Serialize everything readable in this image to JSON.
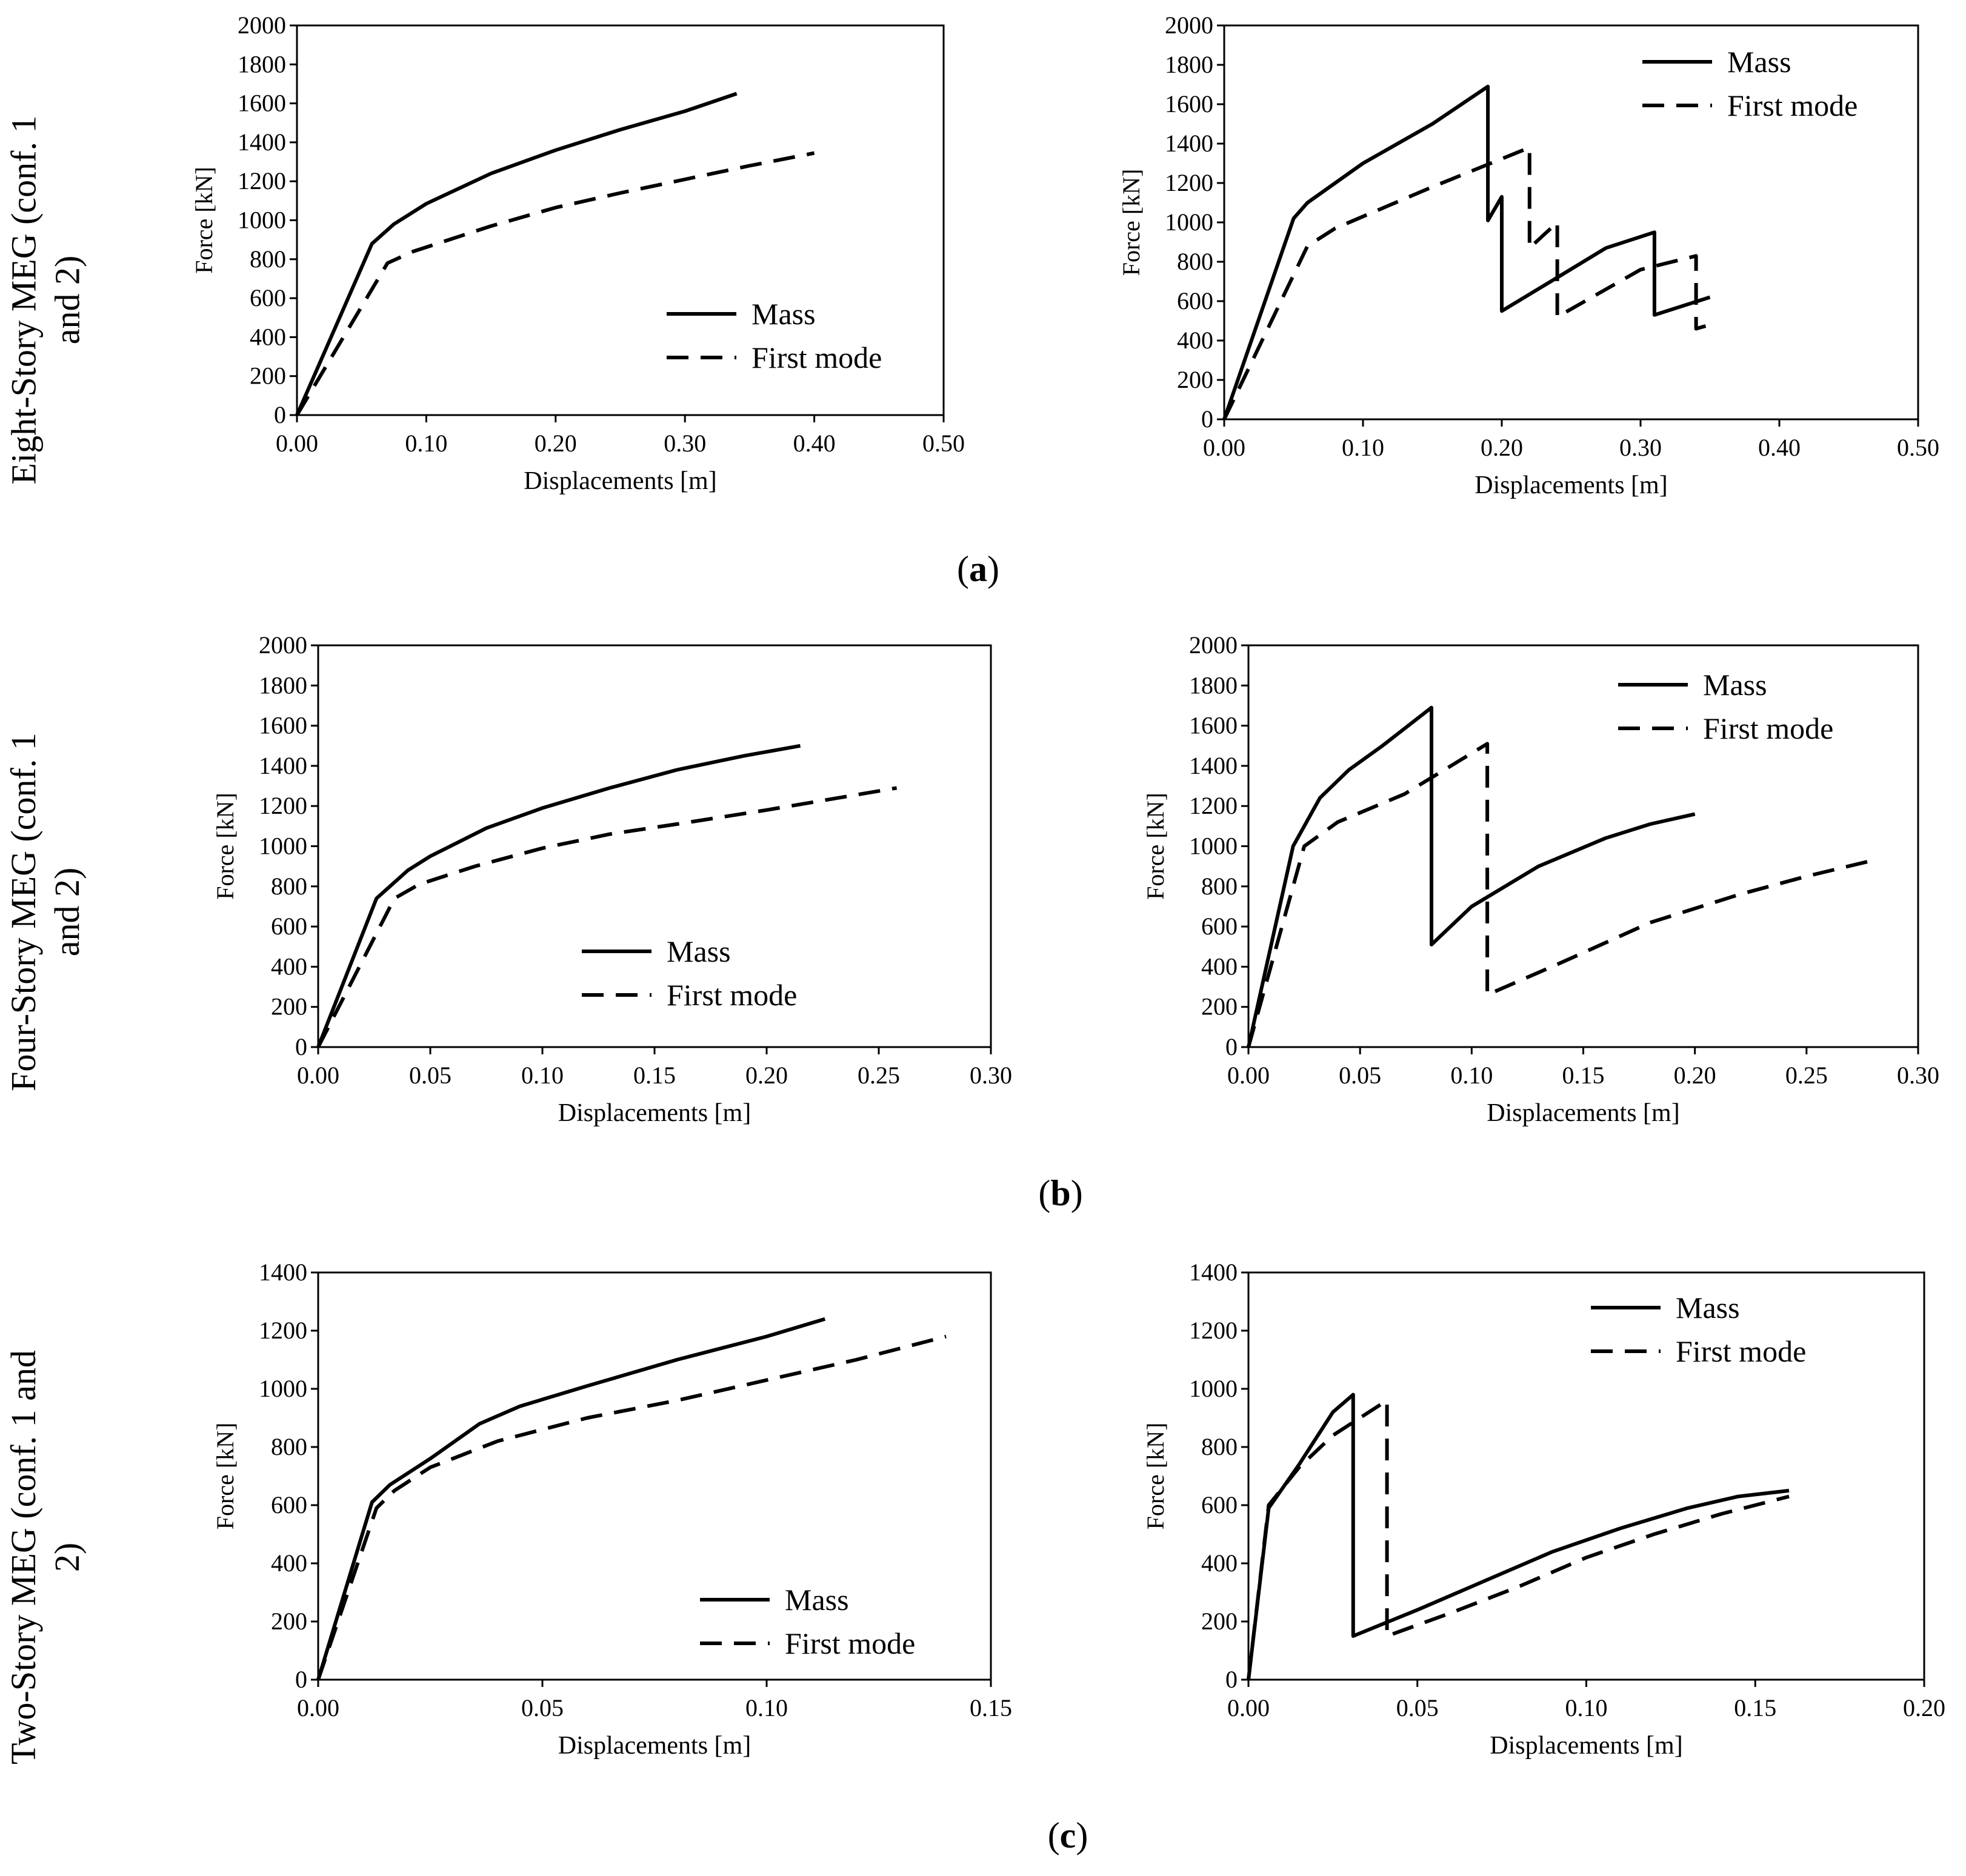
{
  "row_labels": [
    {
      "line1": "Eight-Story MEG (conf. 1",
      "line2": "and 2)"
    },
    {
      "line1": "Four-Story MEG (conf. 1",
      "line2": "and 2)"
    },
    {
      "line1": "Two-Story MEG (conf. 1 and",
      "line2": "2)"
    }
  ],
  "panel_labels": [
    {
      "open": "(",
      "letter": "a",
      "close": ")"
    },
    {
      "open": "(",
      "letter": "b",
      "close": ")"
    },
    {
      "open": "(",
      "letter": "c",
      "close": ")"
    }
  ],
  "chart_data": [
    {
      "id": "a-left",
      "type": "line",
      "title": "",
      "xlabel": "Displacements [m]",
      "ylabel": "Force [kN]",
      "xlim": [
        0,
        0.5
      ],
      "ylim": [
        0,
        2000
      ],
      "xticks": [
        0,
        0.1,
        0.2,
        0.3,
        0.4,
        0.5
      ],
      "xtick_labels": [
        "0.00",
        "0.10",
        "0.20",
        "0.30",
        "0.40",
        "0.50"
      ],
      "yticks": [
        0,
        200,
        400,
        600,
        800,
        1000,
        1200,
        1400,
        1600,
        1800,
        2000
      ],
      "ytick_labels": [
        "0",
        "200",
        "400",
        "600",
        "800",
        "1000",
        "1200",
        "1400",
        "1600",
        "1800",
        "2000"
      ],
      "legend_position": "bottom-right",
      "series": [
        {
          "name": "Mass",
          "style": "solid",
          "points": [
            [
              0,
              0
            ],
            [
              0.058,
              880
            ],
            [
              0.075,
              980
            ],
            [
              0.1,
              1085
            ],
            [
              0.15,
              1240
            ],
            [
              0.2,
              1360
            ],
            [
              0.25,
              1465
            ],
            [
              0.3,
              1560
            ],
            [
              0.34,
              1650
            ]
          ]
        },
        {
          "name": "First mode",
          "style": "dashed",
          "points": [
            [
              0,
              0
            ],
            [
              0.07,
              780
            ],
            [
              0.09,
              840
            ],
            [
              0.15,
              970
            ],
            [
              0.2,
              1065
            ],
            [
              0.25,
              1140
            ],
            [
              0.3,
              1210
            ],
            [
              0.35,
              1280
            ],
            [
              0.4,
              1345
            ]
          ]
        }
      ]
    },
    {
      "id": "a-right",
      "type": "line",
      "title": "",
      "xlabel": "Displacements [m]",
      "ylabel": "Force [kN]",
      "xlim": [
        0,
        0.5
      ],
      "ylim": [
        0,
        2000
      ],
      "xticks": [
        0,
        0.1,
        0.2,
        0.3,
        0.4,
        0.5
      ],
      "xtick_labels": [
        "0.00",
        "0.10",
        "0.20",
        "0.30",
        "0.40",
        "0.50"
      ],
      "yticks": [
        0,
        200,
        400,
        600,
        800,
        1000,
        1200,
        1400,
        1600,
        1800,
        2000
      ],
      "ytick_labels": [
        "0",
        "200",
        "400",
        "600",
        "800",
        "1000",
        "1200",
        "1400",
        "1600",
        "1800",
        "2000"
      ],
      "legend_position": "top-right",
      "series": [
        {
          "name": "Mass",
          "style": "solid",
          "points": [
            [
              0,
              0
            ],
            [
              0.05,
              1020
            ],
            [
              0.06,
              1100
            ],
            [
              0.1,
              1300
            ],
            [
              0.15,
              1500
            ],
            [
              0.19,
              1690
            ],
            [
              0.19,
              1010
            ],
            [
              0.2,
              1130
            ],
            [
              0.2,
              550
            ],
            [
              0.24,
              720
            ],
            [
              0.275,
              870
            ],
            [
              0.31,
              950
            ],
            [
              0.31,
              530
            ],
            [
              0.35,
              620
            ]
          ]
        },
        {
          "name": "First mode",
          "style": "dashed",
          "points": [
            [
              0,
              0
            ],
            [
              0.06,
              880
            ],
            [
              0.08,
              970
            ],
            [
              0.15,
              1180
            ],
            [
              0.22,
              1380
            ],
            [
              0.22,
              870
            ],
            [
              0.24,
              1000
            ],
            [
              0.24,
              520
            ],
            [
              0.3,
              760
            ],
            [
              0.34,
              830
            ],
            [
              0.34,
              460
            ],
            [
              0.35,
              480
            ]
          ]
        }
      ]
    },
    {
      "id": "b-left",
      "type": "line",
      "title": "",
      "xlabel": "Displacements [m]",
      "ylabel": "Force [kN]",
      "xlim": [
        0,
        0.3
      ],
      "ylim": [
        0,
        2000
      ],
      "xticks": [
        0,
        0.05,
        0.1,
        0.15,
        0.2,
        0.25,
        0.3
      ],
      "xtick_labels": [
        "0.00",
        "0.05",
        "0.10",
        "0.15",
        "0.20",
        "0.25",
        "0.30"
      ],
      "yticks": [
        0,
        200,
        400,
        600,
        800,
        1000,
        1200,
        1400,
        1600,
        1800,
        2000
      ],
      "ytick_labels": [
        "0",
        "200",
        "400",
        "600",
        "800",
        "1000",
        "1200",
        "1400",
        "1600",
        "1800",
        "2000"
      ],
      "legend_position": "bottom-center",
      "series": [
        {
          "name": "Mass",
          "style": "solid",
          "points": [
            [
              0,
              0
            ],
            [
              0.026,
              740
            ],
            [
              0.04,
              880
            ],
            [
              0.05,
              950
            ],
            [
              0.075,
              1090
            ],
            [
              0.1,
              1190
            ],
            [
              0.13,
              1290
            ],
            [
              0.16,
              1380
            ],
            [
              0.19,
              1450
            ],
            [
              0.215,
              1500
            ]
          ]
        },
        {
          "name": "First mode",
          "style": "dashed",
          "points": [
            [
              0,
              0
            ],
            [
              0.034,
              740
            ],
            [
              0.045,
              810
            ],
            [
              0.07,
              900
            ],
            [
              0.1,
              990
            ],
            [
              0.13,
              1060
            ],
            [
              0.16,
              1110
            ],
            [
              0.2,
              1180
            ],
            [
              0.258,
              1290
            ]
          ]
        }
      ]
    },
    {
      "id": "b-right",
      "type": "line",
      "title": "",
      "xlabel": "Displacements [m]",
      "ylabel": "Force [kN]",
      "xlim": [
        0,
        0.3
      ],
      "ylim": [
        0,
        2000
      ],
      "xticks": [
        0,
        0.05,
        0.1,
        0.15,
        0.2,
        0.25,
        0.3
      ],
      "xtick_labels": [
        "0.00",
        "0.05",
        "0.10",
        "0.15",
        "0.20",
        "0.25",
        "0.30"
      ],
      "yticks": [
        0,
        200,
        400,
        600,
        800,
        1000,
        1200,
        1400,
        1600,
        1800,
        2000
      ],
      "ytick_labels": [
        "0",
        "200",
        "400",
        "600",
        "800",
        "1000",
        "1200",
        "1400",
        "1600",
        "1800",
        "2000"
      ],
      "legend_position": "top-right",
      "series": [
        {
          "name": "Mass",
          "style": "solid",
          "points": [
            [
              0,
              0
            ],
            [
              0.02,
              1000
            ],
            [
              0.032,
              1240
            ],
            [
              0.045,
              1380
            ],
            [
              0.06,
              1500
            ],
            [
              0.082,
              1690
            ],
            [
              0.082,
              510
            ],
            [
              0.1,
              700
            ],
            [
              0.13,
              900
            ],
            [
              0.16,
              1040
            ],
            [
              0.18,
              1110
            ],
            [
              0.2,
              1160
            ]
          ]
        },
        {
          "name": "First mode",
          "style": "dashed",
          "points": [
            [
              0,
              0
            ],
            [
              0.025,
              1000
            ],
            [
              0.04,
              1120
            ],
            [
              0.07,
              1260
            ],
            [
              0.107,
              1510
            ],
            [
              0.107,
              260
            ],
            [
              0.14,
              420
            ],
            [
              0.18,
              620
            ],
            [
              0.22,
              760
            ],
            [
              0.25,
              850
            ],
            [
              0.28,
              930
            ]
          ]
        }
      ]
    },
    {
      "id": "c-left",
      "type": "line",
      "title": "",
      "xlabel": "Displacements [m]",
      "ylabel": "Force [kN]",
      "xlim": [
        0,
        0.15
      ],
      "ylim": [
        0,
        1400
      ],
      "xticks": [
        0,
        0.05,
        0.1,
        0.15
      ],
      "xtick_labels": [
        "0.00",
        "0.05",
        "0.10",
        "0.15"
      ],
      "yticks": [
        0,
        200,
        400,
        600,
        800,
        1000,
        1200,
        1400
      ],
      "ytick_labels": [
        "0",
        "200",
        "400",
        "600",
        "800",
        "1000",
        "1200",
        "1400"
      ],
      "legend_position": "bottom-right",
      "series": [
        {
          "name": "Mass",
          "style": "solid",
          "points": [
            [
              0,
              0
            ],
            [
              0.012,
              610
            ],
            [
              0.016,
              670
            ],
            [
              0.025,
              760
            ],
            [
              0.036,
              880
            ],
            [
              0.045,
              940
            ],
            [
              0.06,
              1010
            ],
            [
              0.08,
              1100
            ],
            [
              0.1,
              1180
            ],
            [
              0.113,
              1240
            ]
          ]
        },
        {
          "name": "First mode",
          "style": "dashed",
          "points": [
            [
              0,
              0
            ],
            [
              0.013,
              590
            ],
            [
              0.017,
              650
            ],
            [
              0.025,
              730
            ],
            [
              0.04,
              820
            ],
            [
              0.06,
              900
            ],
            [
              0.08,
              960
            ],
            [
              0.1,
              1030
            ],
            [
              0.12,
              1100
            ],
            [
              0.14,
              1180
            ]
          ]
        }
      ]
    },
    {
      "id": "c-right",
      "type": "line",
      "title": "",
      "xlabel": "Displacements [m]",
      "ylabel": "Force [kN]",
      "xlim": [
        0,
        0.2
      ],
      "ylim": [
        0,
        1400
      ],
      "xticks": [
        0,
        0.05,
        0.1,
        0.15,
        0.2
      ],
      "xtick_labels": [
        "0.00",
        "0.05",
        "0.10",
        "0.15",
        "0.20"
      ],
      "yticks": [
        0,
        200,
        400,
        600,
        800,
        1000,
        1200,
        1400
      ],
      "ytick_labels": [
        "0",
        "200",
        "400",
        "600",
        "800",
        "1000",
        "1200",
        "1400"
      ],
      "legend_position": "top-right",
      "series": [
        {
          "name": "Mass",
          "style": "solid",
          "points": [
            [
              0,
              0
            ],
            [
              0.006,
              590
            ],
            [
              0.015,
              740
            ],
            [
              0.025,
              920
            ],
            [
              0.031,
              980
            ],
            [
              0.031,
              150
            ],
            [
              0.05,
              240
            ],
            [
              0.07,
              340
            ],
            [
              0.09,
              440
            ],
            [
              0.11,
              520
            ],
            [
              0.13,
              590
            ],
            [
              0.145,
              630
            ],
            [
              0.16,
              650
            ]
          ]
        },
        {
          "name": "First mode",
          "style": "dashed",
          "points": [
            [
              0,
              0
            ],
            [
              0.006,
              600
            ],
            [
              0.015,
              730
            ],
            [
              0.025,
              840
            ],
            [
              0.041,
              960
            ],
            [
              0.041,
              150
            ],
            [
              0.06,
              230
            ],
            [
              0.08,
              320
            ],
            [
              0.1,
              420
            ],
            [
              0.12,
              500
            ],
            [
              0.14,
              570
            ],
            [
              0.16,
              630
            ]
          ]
        }
      ]
    }
  ]
}
